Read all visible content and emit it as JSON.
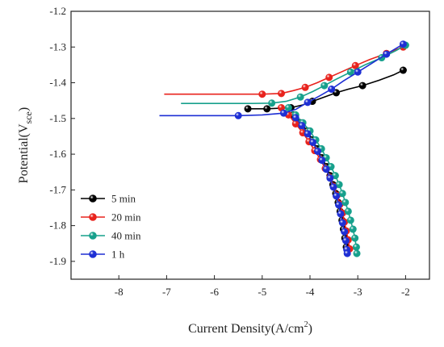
{
  "chart_data": {
    "type": "line",
    "xlabel_main": "Current Density",
    "xlabel_unit": "(A/cm",
    "xlabel_sup": "2",
    "xlabel_close": ")",
    "ylabel_main": "Potential(V",
    "ylabel_sub": "sce",
    "ylabel_close": ")",
    "xlim": [
      -9,
      -1.5
    ],
    "ylim": [
      -1.95,
      -1.2
    ],
    "xticks": [
      -8,
      -7,
      -6,
      -5,
      -4,
      -3,
      -2
    ],
    "xtick_labels": [
      "-8",
      "-7",
      "-6",
      "-5",
      "-4",
      "-3",
      "-2"
    ],
    "yticks": [
      -1.2,
      -1.3,
      -1.4,
      -1.5,
      -1.6,
      -1.7,
      -1.8,
      -1.9
    ],
    "ytick_labels": [
      "-1.2",
      "-1.3",
      "-1.4",
      "-1.5",
      "-1.6",
      "-1.7",
      "-1.8",
      "-1.9"
    ],
    "grid": false,
    "legend_position": "bottom-left",
    "series": [
      {
        "name": "5 min",
        "color": "#000000",
        "anodic": [
          [
            -5.3,
            -1.473
          ],
          [
            -4.9,
            -1.473
          ],
          [
            -4.4,
            -1.47
          ],
          [
            -4.15,
            -1.462
          ],
          [
            -3.95,
            -1.452
          ],
          [
            -3.7,
            -1.44
          ],
          [
            -3.45,
            -1.428
          ],
          [
            -3.2,
            -1.418
          ],
          [
            -2.9,
            -1.408
          ],
          [
            -2.55,
            -1.393
          ],
          [
            -2.25,
            -1.378
          ],
          [
            -2.05,
            -1.365
          ]
        ],
        "cathodic": [
          [
            -4.35,
            -1.49
          ],
          [
            -4.2,
            -1.512
          ],
          [
            -4.05,
            -1.535
          ],
          [
            -3.95,
            -1.56
          ],
          [
            -3.85,
            -1.585
          ],
          [
            -3.75,
            -1.61
          ],
          [
            -3.65,
            -1.635
          ],
          [
            -3.58,
            -1.66
          ],
          [
            -3.52,
            -1.685
          ],
          [
            -3.46,
            -1.71
          ],
          [
            -3.41,
            -1.735
          ],
          [
            -3.37,
            -1.76
          ],
          [
            -3.33,
            -1.785
          ],
          [
            -3.3,
            -1.81
          ],
          [
            -3.27,
            -1.835
          ],
          [
            -3.24,
            -1.86
          ]
        ],
        "marker_x": [
          -5.3,
          -4.9,
          -4.4,
          -3.95,
          -3.45,
          -2.9,
          -2.05
        ]
      },
      {
        "name": "20 min",
        "color": "#e8231d",
        "anodic": [
          [
            -7.05,
            -1.432
          ],
          [
            -6.0,
            -1.432
          ],
          [
            -5.0,
            -1.432
          ],
          [
            -4.6,
            -1.43
          ],
          [
            -4.35,
            -1.422
          ],
          [
            -4.1,
            -1.413
          ],
          [
            -3.85,
            -1.4
          ],
          [
            -3.6,
            -1.385
          ],
          [
            -3.35,
            -1.37
          ],
          [
            -3.05,
            -1.352
          ],
          [
            -2.75,
            -1.335
          ],
          [
            -2.4,
            -1.318
          ],
          [
            -2.05,
            -1.3
          ]
        ],
        "cathodic": [
          [
            -4.6,
            -1.47
          ],
          [
            -4.45,
            -1.49
          ],
          [
            -4.3,
            -1.515
          ],
          [
            -4.15,
            -1.54
          ],
          [
            -4.02,
            -1.565
          ],
          [
            -3.9,
            -1.59
          ],
          [
            -3.78,
            -1.615
          ],
          [
            -3.68,
            -1.64
          ],
          [
            -3.58,
            -1.665
          ],
          [
            -3.5,
            -1.69
          ],
          [
            -3.43,
            -1.715
          ],
          [
            -3.37,
            -1.74
          ],
          [
            -3.32,
            -1.765
          ],
          [
            -3.28,
            -1.79
          ],
          [
            -3.24,
            -1.815
          ],
          [
            -3.2,
            -1.84
          ],
          [
            -3.17,
            -1.865
          ]
        ],
        "marker_x": [
          -5.0,
          -4.6,
          -4.1,
          -3.6,
          -3.05,
          -2.4,
          -2.05
        ]
      },
      {
        "name": "40 min",
        "color": "#17a08c",
        "anodic": [
          [
            -6.7,
            -1.458
          ],
          [
            -6.0,
            -1.458
          ],
          [
            -5.2,
            -1.458
          ],
          [
            -4.8,
            -1.457
          ],
          [
            -4.5,
            -1.452
          ],
          [
            -4.2,
            -1.44
          ],
          [
            -3.95,
            -1.425
          ],
          [
            -3.7,
            -1.408
          ],
          [
            -3.45,
            -1.39
          ],
          [
            -3.15,
            -1.37
          ],
          [
            -2.85,
            -1.35
          ],
          [
            -2.5,
            -1.33
          ],
          [
            -2.2,
            -1.31
          ],
          [
            -2.0,
            -1.295
          ]
        ],
        "cathodic": [
          [
            -4.45,
            -1.47
          ],
          [
            -4.3,
            -1.49
          ],
          [
            -4.15,
            -1.512
          ],
          [
            -4.0,
            -1.535
          ],
          [
            -3.88,
            -1.56
          ],
          [
            -3.76,
            -1.585
          ],
          [
            -3.66,
            -1.61
          ],
          [
            -3.56,
            -1.635
          ],
          [
            -3.47,
            -1.66
          ],
          [
            -3.39,
            -1.685
          ],
          [
            -3.32,
            -1.71
          ],
          [
            -3.26,
            -1.735
          ],
          [
            -3.2,
            -1.76
          ],
          [
            -3.15,
            -1.785
          ],
          [
            -3.1,
            -1.81
          ],
          [
            -3.06,
            -1.835
          ],
          [
            -3.03,
            -1.86
          ],
          [
            -3.02,
            -1.878
          ]
        ],
        "marker_x": [
          -4.8,
          -4.2,
          -3.7,
          -3.15,
          -2.5,
          -2.0
        ]
      },
      {
        "name": "1 h",
        "color": "#1e2fd4",
        "anodic": [
          [
            -7.15,
            -1.492
          ],
          [
            -6.2,
            -1.492
          ],
          [
            -5.5,
            -1.492
          ],
          [
            -5.0,
            -1.49
          ],
          [
            -4.55,
            -1.485
          ],
          [
            -4.3,
            -1.475
          ],
          [
            -4.05,
            -1.455
          ],
          [
            -3.8,
            -1.437
          ],
          [
            -3.55,
            -1.418
          ],
          [
            -3.3,
            -1.395
          ],
          [
            -3.0,
            -1.37
          ],
          [
            -2.7,
            -1.345
          ],
          [
            -2.4,
            -1.32
          ],
          [
            -2.05,
            -1.292
          ]
        ],
        "cathodic": [
          [
            -4.3,
            -1.498
          ],
          [
            -4.17,
            -1.52
          ],
          [
            -4.05,
            -1.543
          ],
          [
            -3.94,
            -1.567
          ],
          [
            -3.84,
            -1.592
          ],
          [
            -3.75,
            -1.617
          ],
          [
            -3.66,
            -1.642
          ],
          [
            -3.58,
            -1.667
          ],
          [
            -3.51,
            -1.692
          ],
          [
            -3.45,
            -1.717
          ],
          [
            -3.4,
            -1.742
          ],
          [
            -3.36,
            -1.767
          ],
          [
            -3.32,
            -1.792
          ],
          [
            -3.28,
            -1.817
          ],
          [
            -3.25,
            -1.842
          ],
          [
            -3.23,
            -1.867
          ],
          [
            -3.22,
            -1.878
          ]
        ],
        "marker_x": [
          -5.5,
          -4.55,
          -4.05,
          -3.55,
          -3.0,
          -2.4,
          -2.05
        ]
      }
    ]
  }
}
